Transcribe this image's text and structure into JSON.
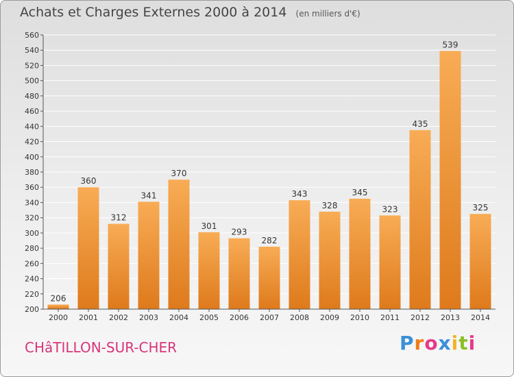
{
  "header": {
    "title": "Achats et Charges Externes 2000 à 2014",
    "unit": "(en milliers d'€)"
  },
  "commune_name": "CHâTILLON-SUR-CHER",
  "logo": {
    "letters": [
      "P",
      "r",
      "o",
      "x",
      "i",
      "t",
      "i"
    ],
    "colors": [
      "#3a8fd8",
      "#f07d16",
      "#e63a8a",
      "#3a8fd8",
      "#f3b323",
      "#8cbf26",
      "#e63a8a"
    ]
  },
  "colors": {
    "bar_top": "#f8ac55",
    "bar_bottom": "#de7a1c",
    "grid": "#ffffff",
    "axis": "#555555",
    "text": "#333333"
  },
  "chart_data": {
    "type": "bar",
    "categories": [
      "2000",
      "2001",
      "2002",
      "2003",
      "2004",
      "2005",
      "2006",
      "2007",
      "2008",
      "2009",
      "2010",
      "2011",
      "2012",
      "2013",
      "2014"
    ],
    "values": [
      206,
      360,
      312,
      341,
      370,
      301,
      293,
      282,
      343,
      328,
      345,
      323,
      435,
      539,
      325
    ],
    "ylim": [
      200,
      560
    ],
    "ytick_step": 20,
    "grid": true,
    "data_labels": true
  }
}
